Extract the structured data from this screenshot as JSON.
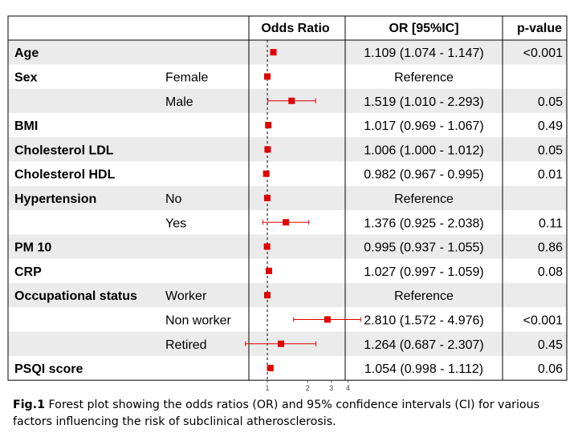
{
  "columns": {
    "plot_header": "Odds Ratio",
    "or_header": "OR [95%IC]",
    "p_header": "p-value"
  },
  "chart_data": {
    "type": "forest",
    "x_scale": "log",
    "reference_line": 1,
    "x_ticks": [
      1,
      2,
      3,
      4
    ],
    "x_tick_labels": [
      "1",
      "2",
      "3",
      "4"
    ],
    "marker_color": "#e00000",
    "rows": [
      {
        "factor": "Age",
        "level": "",
        "or": 1.109,
        "lo": 1.074,
        "hi": 1.147,
        "ci_text": "1.109 (1.074 - 1.147)",
        "p": "<0.001"
      },
      {
        "factor": "Sex",
        "level": "Female",
        "or": 1,
        "lo": null,
        "hi": null,
        "ci_text": "Reference",
        "p": ""
      },
      {
        "factor": "",
        "level": "Male",
        "or": 1.519,
        "lo": 1.01,
        "hi": 2.293,
        "ci_text": "1.519 (1.010 - 2.293)",
        "p": "0.05"
      },
      {
        "factor": "BMI",
        "level": "",
        "or": 1.017,
        "lo": 0.969,
        "hi": 1.067,
        "ci_text": "1.017 (0.969 - 1.067)",
        "p": "0.49"
      },
      {
        "factor": "Cholesterol LDL",
        "level": "",
        "or": 1.006,
        "lo": 1.0,
        "hi": 1.012,
        "ci_text": "1.006 (1.000 - 1.012)",
        "p": "0.05"
      },
      {
        "factor": "Cholesterol HDL",
        "level": "",
        "or": 0.982,
        "lo": 0.967,
        "hi": 0.995,
        "ci_text": "0.982 (0.967 - 0.995)",
        "p": "0.01"
      },
      {
        "factor": "Hypertension",
        "level": "No",
        "or": 1,
        "lo": null,
        "hi": null,
        "ci_text": "Reference",
        "p": ""
      },
      {
        "factor": "",
        "level": "Yes",
        "or": 1.376,
        "lo": 0.925,
        "hi": 2.038,
        "ci_text": "1.376 (0.925 - 2.038)",
        "p": "0.11"
      },
      {
        "factor": "PM 10",
        "level": "",
        "or": 0.995,
        "lo": 0.937,
        "hi": 1.055,
        "ci_text": "0.995 (0.937 - 1.055)",
        "p": "0.86"
      },
      {
        "factor": "CRP",
        "level": "",
        "or": 1.027,
        "lo": 0.997,
        "hi": 1.059,
        "ci_text": "1.027 (0.997 - 1.059)",
        "p": "0.08"
      },
      {
        "factor": "Occupational status",
        "level": "Worker",
        "or": 1,
        "lo": null,
        "hi": null,
        "ci_text": "Reference",
        "p": ""
      },
      {
        "factor": "",
        "level": "Non worker",
        "or": 2.81,
        "lo": 1.572,
        "hi": 4.976,
        "ci_text": "2.810 (1.572 - 4.976)",
        "p": "<0.001"
      },
      {
        "factor": "",
        "level": "Retired",
        "or": 1.264,
        "lo": 0.687,
        "hi": 2.307,
        "ci_text": "1.264 (0.687 - 2.307)",
        "p": "0.45"
      },
      {
        "factor": "PSQI score",
        "level": "",
        "or": 1.054,
        "lo": 0.998,
        "hi": 1.112,
        "ci_text": "1.054 (0.998 - 1.112)",
        "p": "0.06"
      }
    ]
  },
  "caption": {
    "label": "Fig.1",
    "text": " Forest plot showing the odds ratios (OR) and 95% confidence intervals (CI) for various factors influencing the risk of subclinical atherosclerosis."
  }
}
